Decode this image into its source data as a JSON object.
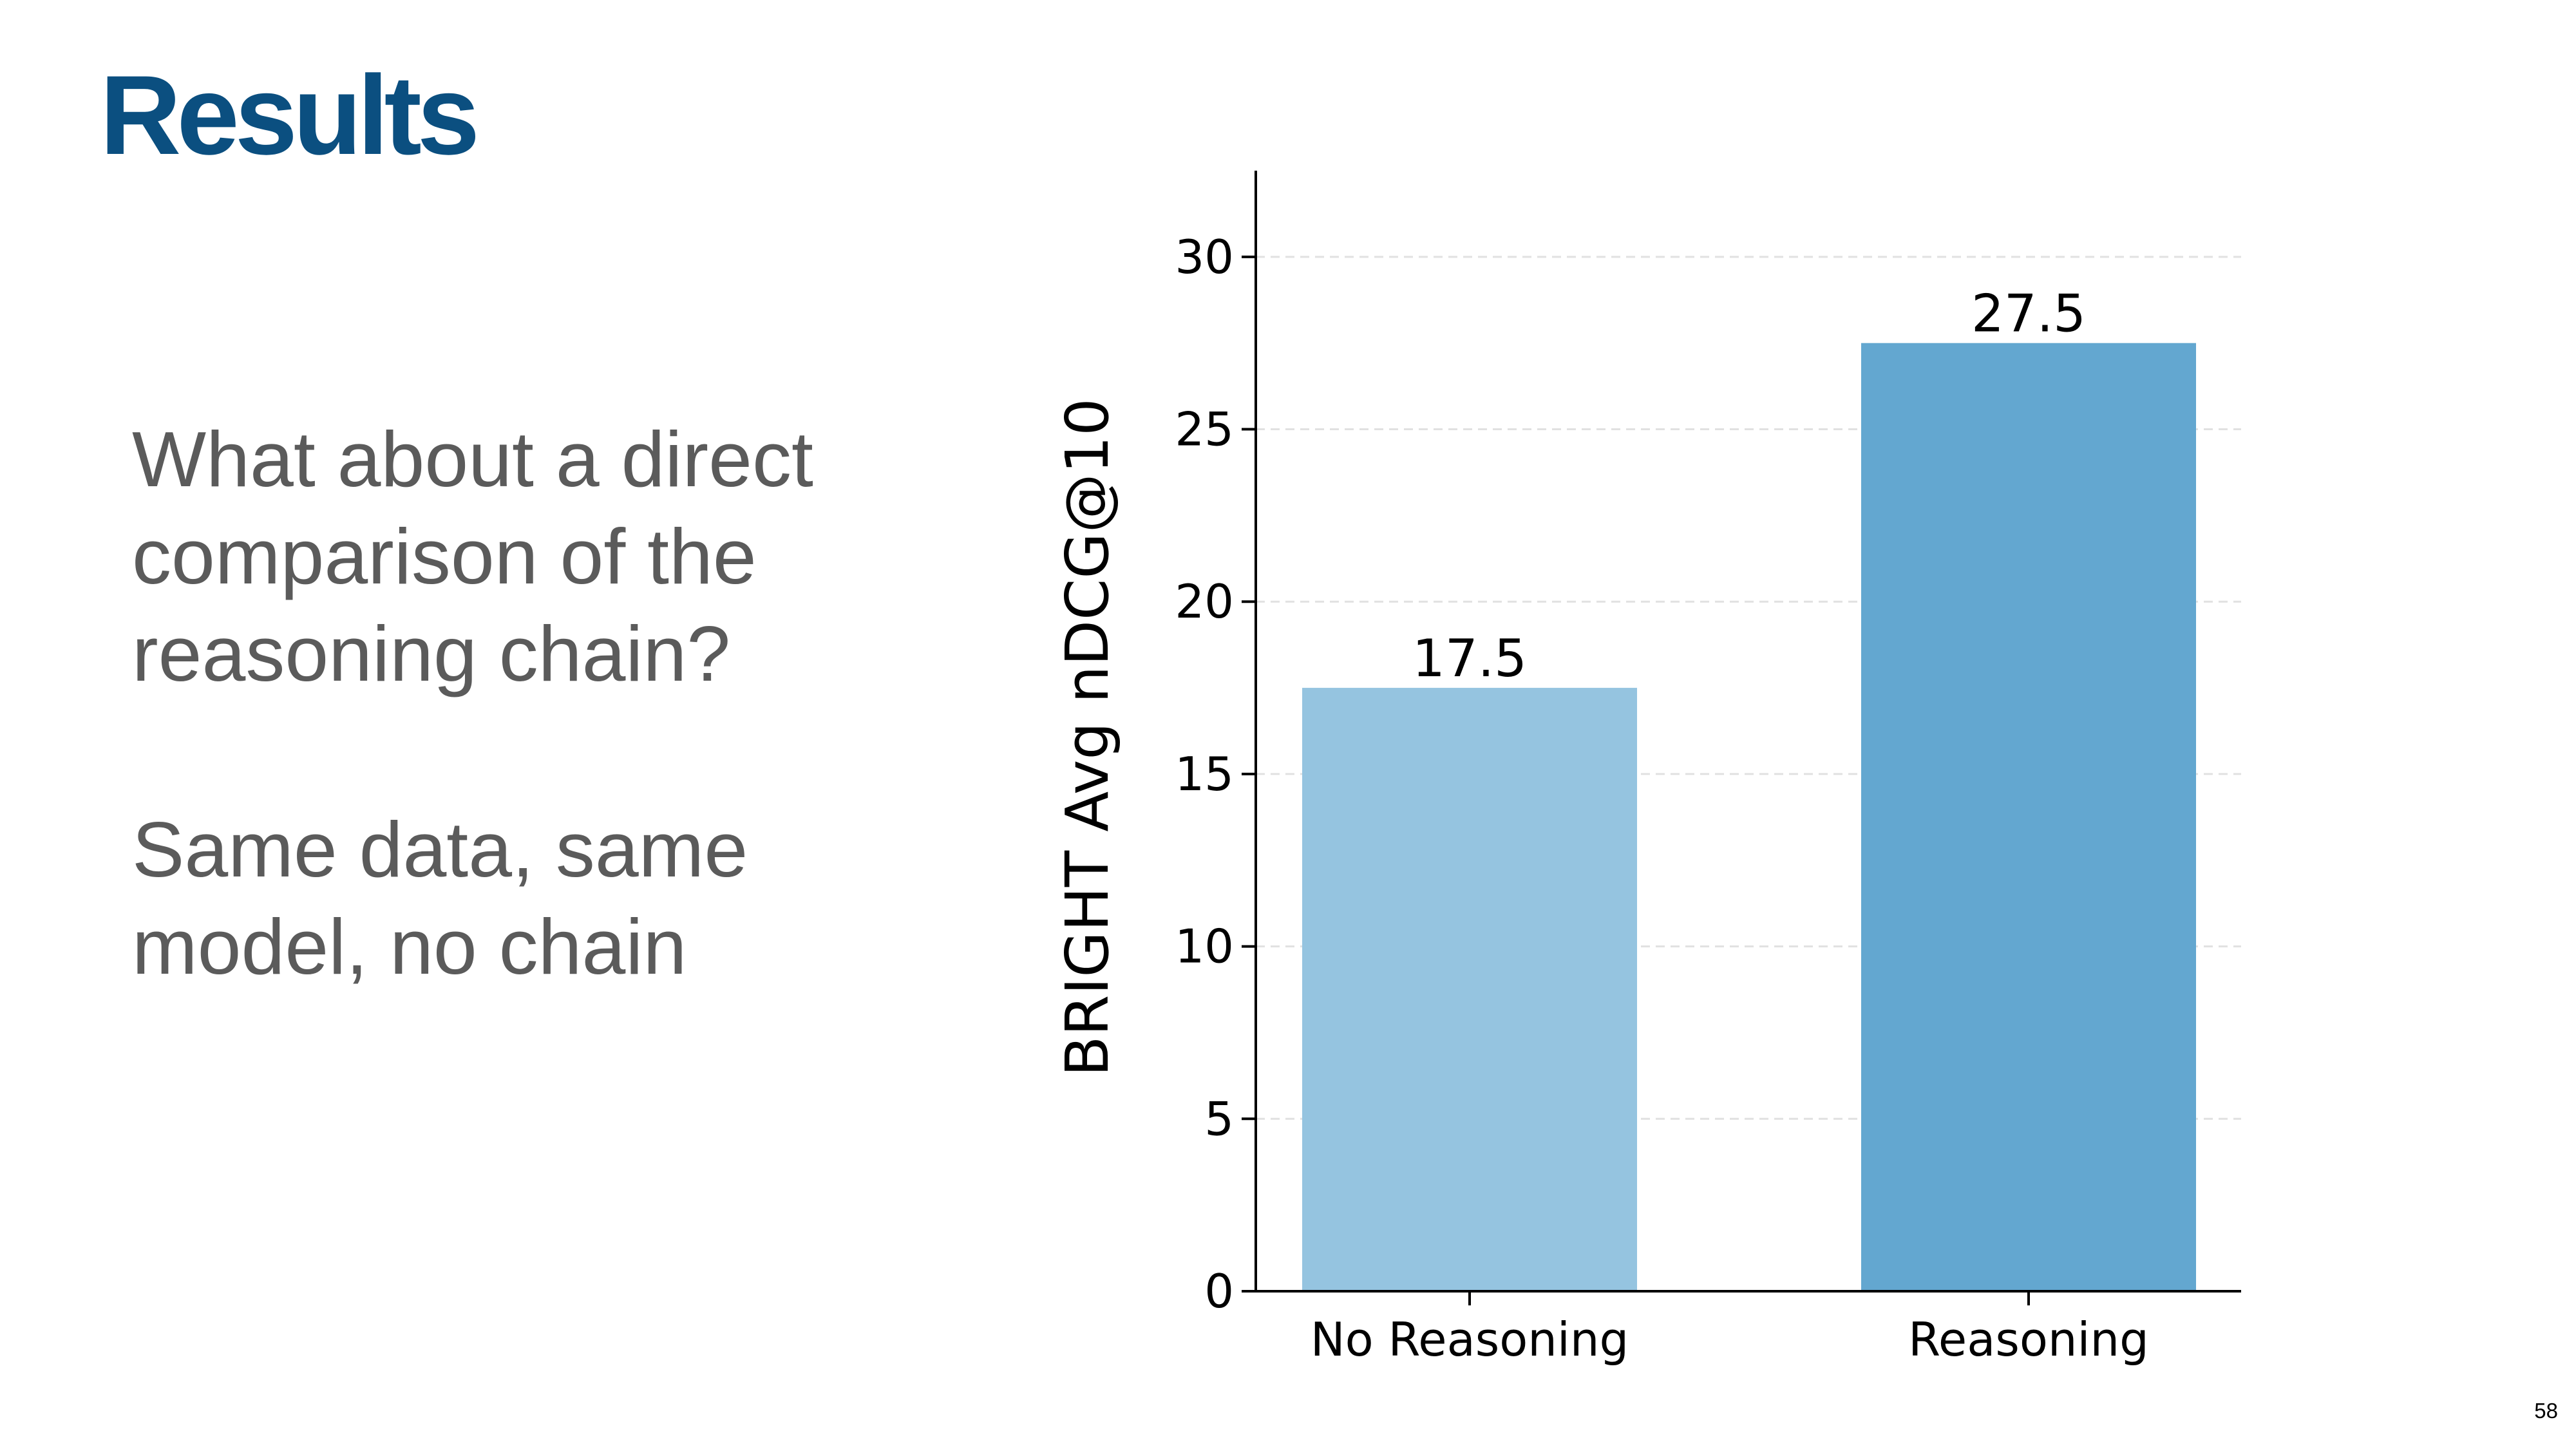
{
  "slide": {
    "title": "Results",
    "paragraph1": [
      "What about a direct",
      "comparison of the",
      "reasoning chain?"
    ],
    "paragraph2": [
      "Same data, same",
      "model, no chain"
    ],
    "page_number": "58"
  },
  "colors": {
    "title": "#0b4f80",
    "body_text": "#5b5b5b",
    "bar_no_reasoning": "#95c4e0",
    "bar_reasoning": "#63a7d0",
    "grid": "#e1e1e1",
    "axis": "#000000"
  },
  "chart_data": {
    "type": "bar",
    "categories": [
      "No Reasoning",
      "Reasoning"
    ],
    "values": [
      17.5,
      27.5
    ],
    "value_labels": [
      "17.5",
      "27.5"
    ],
    "title": "",
    "xlabel": "",
    "ylabel": "BRIGHT Avg nDCG@10",
    "ylim": [
      0,
      32.5
    ],
    "yticks": [
      0,
      5,
      10,
      15,
      20,
      25,
      30
    ],
    "grid": "horizontal dashed",
    "legend": "none"
  }
}
